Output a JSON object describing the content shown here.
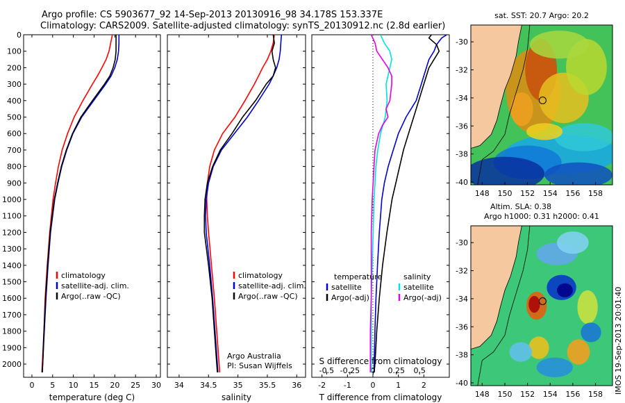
{
  "header": {
    "line1": "Argo profile: CS 5903677_92 14-Sep-2013 20130916_98 34.178S 153.337E",
    "line2": "Climatology: CARS2009. Satellite-adjusted climatology: synTS_20130912.nc (2.8d earlier)"
  },
  "side_stamp": "IMOS 19-Sep-2013 20:01:40",
  "chart_data": [
    {
      "id": "temperature",
      "type": "line",
      "xlabel": "temperature (deg C)",
      "ylabel": "",
      "xlim": [
        -2,
        31
      ],
      "ylim": [
        2080,
        0
      ],
      "xticks": [
        0,
        5,
        10,
        15,
        20,
        25,
        30
      ],
      "xticklabels": [
        "0",
        "5",
        "10",
        "15",
        "20",
        "25",
        "30"
      ],
      "yticks": [
        0,
        100,
        200,
        300,
        400,
        500,
        600,
        700,
        800,
        900,
        1000,
        1100,
        1200,
        1300,
        1400,
        1500,
        1600,
        1700,
        1800,
        1900,
        2000
      ],
      "yticklabels": [
        "0",
        "100",
        "200",
        "300",
        "400",
        "500",
        "600",
        "700",
        "800",
        "900",
        "1000",
        "1100",
        "1200",
        "1300",
        "1400",
        "1500",
        "1600",
        "1700",
        "1800",
        "1900",
        "2000"
      ],
      "legend": [
        "climatology",
        "satellite-adj. clim.",
        "Argo(..raw -QC)"
      ],
      "series": [
        {
          "name": "climatology",
          "color": "#ff0000",
          "depth": [
            0,
            50,
            100,
            150,
            200,
            250,
            300,
            400,
            500,
            600,
            700,
            800,
            900,
            1000,
            1200,
            1400,
            1600,
            1800,
            2000,
            2050
          ],
          "values": [
            19.4,
            19.0,
            18.6,
            17.9,
            16.9,
            15.8,
            14.6,
            12.3,
            10.2,
            8.6,
            7.3,
            6.4,
            5.7,
            5.1,
            4.3,
            3.7,
            3.2,
            2.9,
            2.5,
            2.4
          ]
        },
        {
          "name": "satellite-adj. clim.",
          "color": "#0000cc",
          "depth": [
            0,
            50,
            100,
            150,
            200,
            250,
            300,
            400,
            500,
            600,
            700,
            800,
            900,
            1000,
            1200,
            1400,
            1600,
            1800,
            2000,
            2050
          ],
          "values": [
            21.0,
            21.0,
            20.9,
            20.6,
            20.0,
            19.1,
            17.8,
            14.9,
            12.0,
            9.9,
            8.4,
            7.2,
            6.3,
            5.5,
            4.5,
            3.9,
            3.4,
            3.0,
            2.6,
            2.5
          ]
        },
        {
          "name": "Argo(..raw -QC)",
          "color": "#000000",
          "depth": [
            0,
            50,
            100,
            150,
            200,
            250,
            300,
            400,
            500,
            600,
            700,
            800,
            900,
            1000,
            1200,
            1400,
            1600,
            1800,
            2000,
            2050
          ],
          "values": [
            20.3,
            20.3,
            20.3,
            20.1,
            19.6,
            18.8,
            17.5,
            14.6,
            11.8,
            9.8,
            8.3,
            7.1,
            6.2,
            5.4,
            4.4,
            3.8,
            3.3,
            2.9,
            2.6,
            2.5
          ]
        }
      ]
    },
    {
      "id": "salinity",
      "type": "line",
      "xlabel": "salinity",
      "xlim": [
        33.8,
        36.15
      ],
      "ylim": [
        2080,
        0
      ],
      "xticks": [
        34,
        34.5,
        35,
        35.5,
        36
      ],
      "xticklabels": [
        "34",
        "34.5",
        "35",
        "35.5",
        "36"
      ],
      "legend": [
        "climatology",
        "satellite-adj. clim.",
        "Argo(..raw -QC)"
      ],
      "annotation": [
        "Argo Australia",
        "PI: Susan Wijffels"
      ],
      "series": [
        {
          "name": "climatology",
          "color": "#ff0000",
          "depth": [
            0,
            50,
            100,
            150,
            200,
            250,
            300,
            400,
            500,
            600,
            700,
            800,
            900,
            1000,
            1100,
            1200,
            1400,
            1600,
            1800,
            2000,
            2050
          ],
          "values": [
            35.62,
            35.6,
            35.56,
            35.5,
            35.42,
            35.35,
            35.28,
            35.12,
            34.95,
            34.74,
            34.6,
            34.52,
            34.48,
            34.47,
            34.48,
            34.5,
            34.55,
            34.6,
            34.64,
            34.68,
            34.69
          ]
        },
        {
          "name": "satellite-adj. clim.",
          "color": "#0000cc",
          "depth": [
            0,
            50,
            100,
            150,
            200,
            250,
            300,
            400,
            500,
            600,
            700,
            800,
            900,
            1000,
            1100,
            1200,
            1400,
            1600,
            1800,
            2000,
            2050
          ],
          "values": [
            35.74,
            35.73,
            35.72,
            35.7,
            35.66,
            35.6,
            35.53,
            35.35,
            35.16,
            34.94,
            34.72,
            34.58,
            34.5,
            34.46,
            34.45,
            34.46,
            34.52,
            34.57,
            34.61,
            34.65,
            34.66
          ]
        },
        {
          "name": "Argo(..raw -QC)",
          "color": "#000000",
          "depth": [
            0,
            50,
            100,
            150,
            200,
            250,
            300,
            400,
            500,
            600,
            700,
            800,
            900,
            1000,
            1100,
            1200,
            1400,
            1600,
            1800,
            2000,
            2050
          ],
          "values": [
            35.6,
            35.62,
            35.58,
            35.6,
            35.64,
            35.6,
            35.48,
            35.3,
            35.08,
            34.9,
            34.7,
            34.57,
            34.48,
            34.44,
            34.43,
            34.43,
            34.5,
            34.56,
            34.6,
            34.64,
            34.65
          ]
        }
      ]
    },
    {
      "id": "difference",
      "type": "line",
      "xlabel_T": "T difference from climatology",
      "xlabel_S": "S difference from climatology",
      "xlim_T": [
        -2.4,
        3.0
      ],
      "xlim_S": [
        -0.66,
        0.82
      ],
      "ylim": [
        2080,
        0
      ],
      "xticks_T": [
        -2,
        -1,
        0,
        1,
        2
      ],
      "xticklabels_T": [
        "-2",
        "-1",
        "0",
        "1",
        "2"
      ],
      "xticks_S": [
        -0.5,
        -0.25,
        0,
        0.25,
        0.5
      ],
      "xticklabels_S": [
        "-0.5",
        "-0.25",
        "0",
        "0.25",
        "0.5"
      ],
      "legend_T_title": "temperature",
      "legend_S_title": "salinity",
      "legend_T": [
        "satellite",
        "Argo(-adj)"
      ],
      "legend_S": [
        "satellite",
        "Argo(-adj)"
      ],
      "series": [
        {
          "name": "T satellite",
          "axis": "T",
          "color": "#0000cc",
          "depth": [
            0,
            20,
            60,
            100,
            150,
            200,
            250,
            300,
            400,
            500,
            600,
            700,
            800,
            900,
            1000,
            1200,
            1400,
            1600,
            1800,
            2000,
            2050
          ],
          "values": [
            2.9,
            2.7,
            2.5,
            2.4,
            2.2,
            2.1,
            2.0,
            1.9,
            1.7,
            1.3,
            1.0,
            0.8,
            0.6,
            0.45,
            0.35,
            0.25,
            0.18,
            0.12,
            0.08,
            0.05,
            0.04
          ]
        },
        {
          "name": "T Argo(-adj)",
          "axis": "T",
          "color": "#000000",
          "depth": [
            0,
            20,
            60,
            100,
            150,
            200,
            250,
            300,
            400,
            500,
            600,
            700,
            800,
            900,
            1000,
            1200,
            1400,
            1600,
            1800,
            2000,
            2050
          ],
          "values": [
            2.3,
            2.2,
            2.5,
            2.6,
            2.4,
            2.2,
            2.1,
            2.0,
            1.8,
            1.6,
            1.4,
            1.2,
            1.05,
            0.9,
            0.75,
            0.55,
            0.38,
            0.25,
            0.15,
            0.08,
            0.05
          ]
        },
        {
          "name": "S satellite",
          "axis": "S",
          "color": "#00e0e0",
          "depth": [
            0,
            50,
            100,
            150,
            200,
            300,
            400,
            500,
            600,
            700,
            800,
            900,
            1000,
            1200,
            1400,
            1600,
            1800,
            2000,
            2050
          ],
          "values": [
            0.08,
            0.12,
            0.18,
            0.2,
            0.18,
            0.14,
            0.15,
            0.13,
            0.08,
            0.05,
            0.03,
            0.02,
            0.01,
            0.0,
            -0.01,
            -0.02,
            -0.02,
            -0.02,
            -0.02
          ]
        },
        {
          "name": "S Argo(-adj)",
          "axis": "S",
          "color": "#e000e0",
          "depth": [
            0,
            50,
            100,
            150,
            200,
            250,
            300,
            400,
            450,
            500,
            550,
            600,
            700,
            800,
            900,
            1000,
            1200,
            1400,
            1600,
            1800,
            2000,
            2050
          ],
          "values": [
            -0.02,
            0.02,
            0.04,
            0.1,
            0.16,
            0.2,
            0.2,
            0.18,
            0.14,
            0.16,
            0.1,
            0.06,
            0.02,
            0.01,
            0.0,
            -0.01,
            -0.02,
            -0.02,
            -0.02,
            -0.03,
            -0.03,
            -0.03
          ]
        }
      ]
    },
    {
      "id": "sst-map",
      "type": "heatmap",
      "title": "sat. SST: 20.7 Argo: 20.2",
      "xticks": [
        148,
        150,
        152,
        154,
        156,
        158
      ],
      "xticklabels": [
        "148",
        "150",
        "152",
        "154",
        "156",
        "158"
      ],
      "yticks": [
        -30,
        -32,
        -34,
        -36,
        -38,
        -40
      ],
      "yticklabels": [
        "-30",
        "-32",
        "-34",
        "-36",
        "-38",
        "-40"
      ],
      "xlim": [
        147,
        159.5
      ],
      "ylim": [
        -40.2,
        -28.8
      ],
      "float_position": [
        153.337,
        -34.178
      ]
    },
    {
      "id": "sla-map",
      "type": "heatmap",
      "title": "Altim. SLA: 0.38",
      "subtitle": "Argo h1000: 0.31 h2000: 0.41",
      "xticks": [
        148,
        150,
        152,
        154,
        156,
        158
      ],
      "xticklabels": [
        "148",
        "150",
        "152",
        "154",
        "156",
        "158"
      ],
      "yticks": [
        -30,
        -32,
        -34,
        -36,
        -38,
        -40
      ],
      "yticklabels": [
        "-30",
        "-32",
        "-34",
        "-36",
        "-38",
        "-40"
      ],
      "xlim": [
        147,
        159.5
      ],
      "ylim": [
        -40.2,
        -28.8
      ],
      "float_position": [
        153.337,
        -34.178
      ]
    }
  ]
}
